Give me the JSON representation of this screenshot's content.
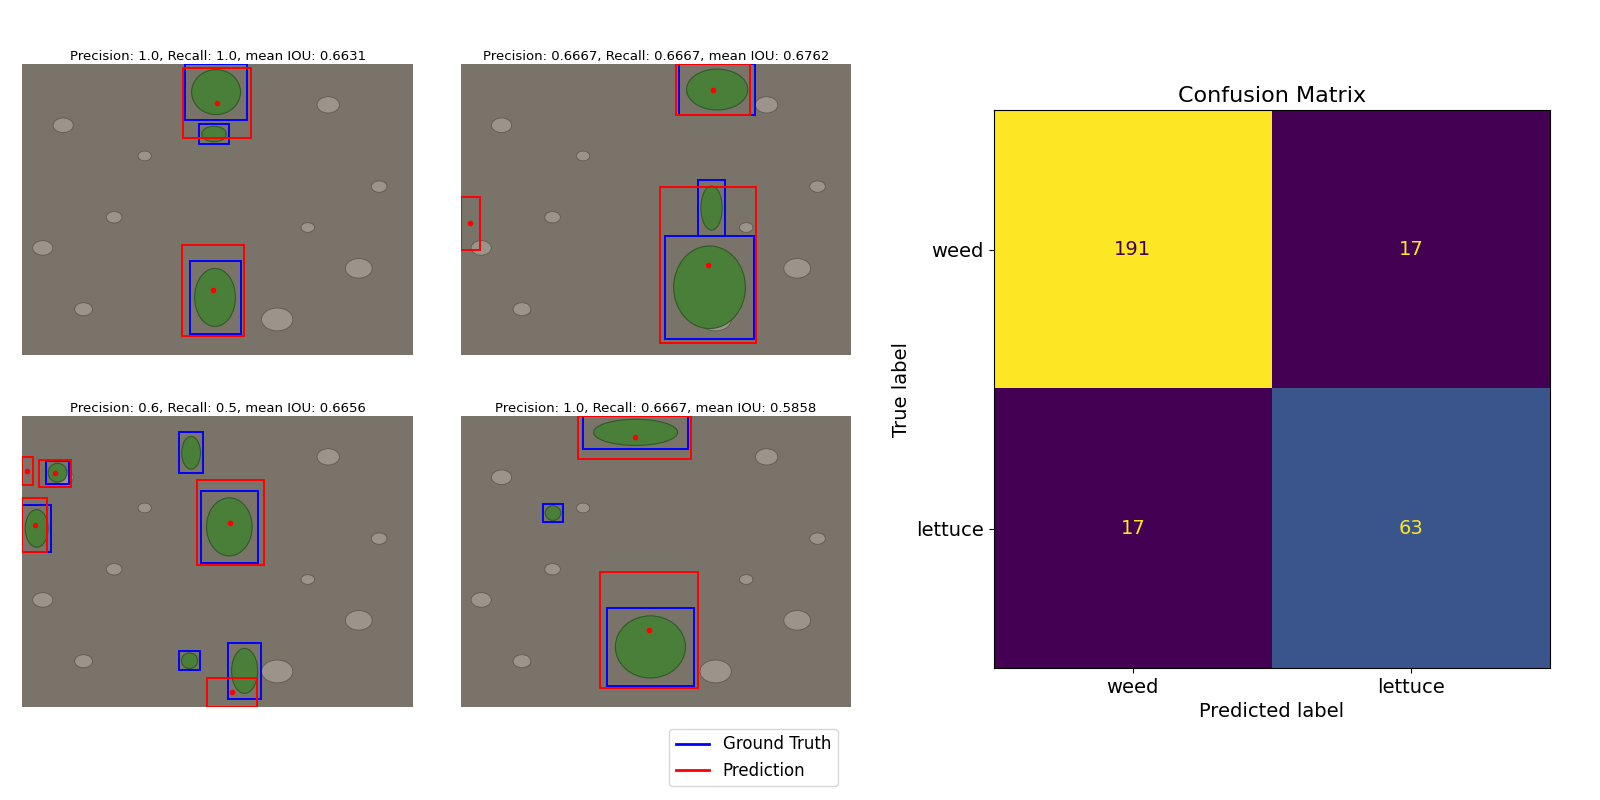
{
  "detections": {
    "type": "image_grid",
    "panels": [
      {
        "title": "Precision: 1.0, Recall: 1.0, mean IOU: 0.6631"
      },
      {
        "title": "Precision: 0.6667, Recall: 0.6667, mean IOU: 0.6762"
      },
      {
        "title": "Precision: 0.6, Recall: 0.5, mean IOU: 0.6656"
      },
      {
        "title": "Precision: 1.0, Recall: 0.6667, mean IOU: 0.5858"
      }
    ],
    "legend_entries": [
      {
        "name": "Ground Truth",
        "color": "#0000ff"
      },
      {
        "name": "Prediction",
        "color": "#ff0000"
      }
    ]
  },
  "chart_data": {
    "type": "heatmap",
    "title": "Confusion Matrix",
    "x_label": "Predicted label",
    "y_label": "True label",
    "x_categories": [
      "weed",
      "lettuce"
    ],
    "y_categories": [
      "weed",
      "lettuce"
    ],
    "cells": [
      [
        191,
        17
      ],
      [
        17,
        63
      ]
    ],
    "data_labels": true
  }
}
